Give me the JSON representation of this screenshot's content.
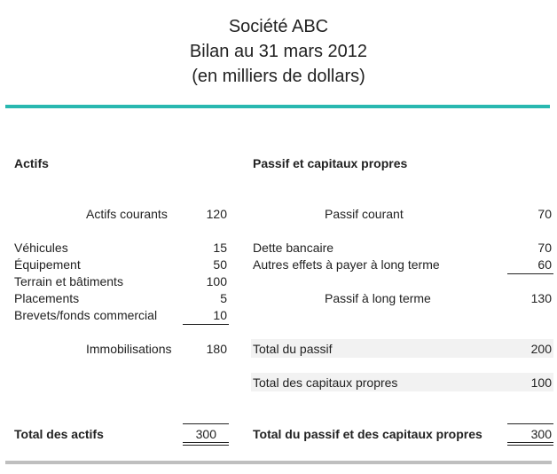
{
  "header": {
    "company": "Société ABC",
    "statement": "Bilan au 31 mars 2012",
    "units": "(en milliers de dollars)"
  },
  "colors": {
    "accent_rule": "#29b8b0",
    "footer_rule": "#bfbfbf",
    "row_shade": "#f2f2f2"
  },
  "assets": {
    "heading": "Actifs",
    "current": {
      "label": "Actifs courants",
      "value": "120"
    },
    "fixed_items": [
      {
        "label": "Véhicules",
        "value": "15"
      },
      {
        "label": "Équipement",
        "value": "50"
      },
      {
        "label": "Terrain et bâtiments",
        "value": "100"
      },
      {
        "label": "Placements",
        "value": "5"
      },
      {
        "label": "Brevets/fonds commercial",
        "value": "10"
      }
    ],
    "fixed_total": {
      "label": "Immobilisations",
      "value": "180"
    },
    "total": {
      "label": "Total des actifs",
      "value": "300"
    }
  },
  "liabilities": {
    "heading": "Passif et capitaux propres",
    "current": {
      "label": "Passif courant",
      "value": "70"
    },
    "long_term_items": [
      {
        "label": "Dette bancaire",
        "value": "70"
      },
      {
        "label": "Autres effets à payer à long terme",
        "value": "60"
      }
    ],
    "long_term_total": {
      "label": "Passif à long terme",
      "value": "130"
    },
    "total_liabilities": {
      "label": "Total du passif",
      "value": "200"
    },
    "total_equity": {
      "label": "Total des capitaux propres",
      "value": "100"
    },
    "total": {
      "label": "Total du passif et des capitaux propres",
      "value": "300"
    }
  }
}
